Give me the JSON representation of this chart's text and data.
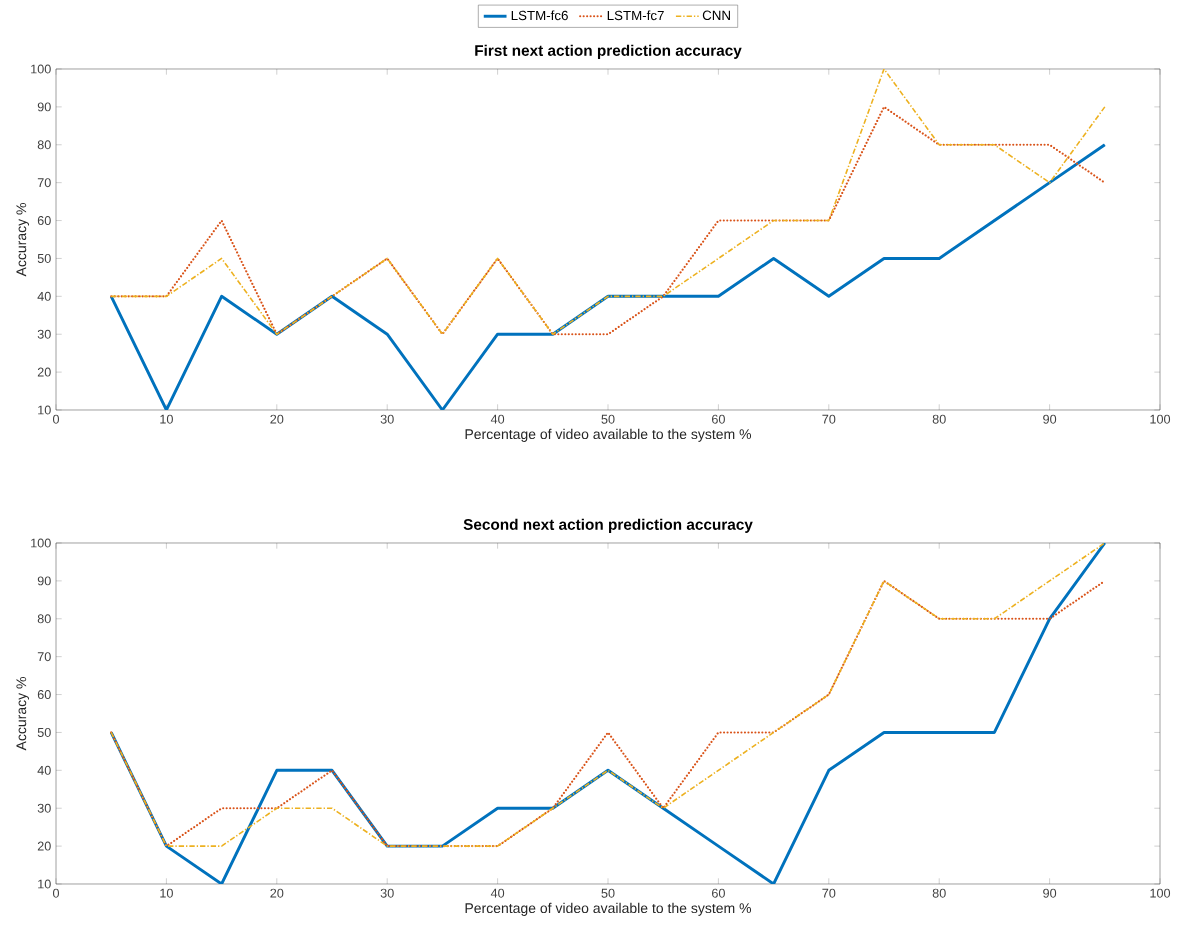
{
  "chart_data": [
    {
      "type": "line",
      "title": "First next action prediction accuracy",
      "xlabel": "Percentage of video available to the system %",
      "ylabel": "Accuracy %",
      "x": [
        5,
        10,
        15,
        20,
        25,
        30,
        35,
        40,
        45,
        50,
        55,
        60,
        65,
        70,
        75,
        80,
        85,
        90,
        95
      ],
      "series": [
        {
          "name": "LSTM-fc6",
          "color": "#0072bd",
          "line_style": "solid",
          "values": [
            40,
            10,
            40,
            30,
            40,
            30,
            10,
            30,
            30,
            40,
            40,
            40,
            50,
            40,
            50,
            50,
            60,
            70,
            80
          ]
        },
        {
          "name": "LSTM-fc7",
          "color": "#d95319",
          "line_style": "dotted",
          "values": [
            40,
            40,
            60,
            30,
            40,
            50,
            30,
            50,
            30,
            30,
            40,
            60,
            60,
            60,
            90,
            80,
            80,
            80,
            70
          ]
        },
        {
          "name": "CNN",
          "color": "#edb120",
          "line_style": "dashdot",
          "values": [
            40,
            40,
            50,
            30,
            40,
            50,
            30,
            50,
            30,
            40,
            40,
            50,
            60,
            60,
            100,
            80,
            80,
            70,
            90
          ]
        }
      ],
      "xlim": [
        0,
        100
      ],
      "xticks": [
        0,
        10,
        20,
        30,
        40,
        50,
        60,
        70,
        80,
        90,
        100
      ],
      "ylim": [
        10,
        100
      ],
      "yticks": [
        10,
        20,
        30,
        40,
        50,
        60,
        70,
        80,
        90,
        100
      ],
      "grid": false,
      "legend": "top"
    },
    {
      "type": "line",
      "title": "Second next action prediction accuracy",
      "xlabel": "Percentage of video available to the system %",
      "ylabel": "Accuracy %",
      "x": [
        5,
        10,
        15,
        20,
        25,
        30,
        35,
        40,
        45,
        50,
        55,
        60,
        65,
        70,
        75,
        80,
        85,
        90,
        95
      ],
      "series": [
        {
          "color": "#0072bd",
          "line_style": "solid",
          "values": [
            50,
            20,
            10,
            40,
            40,
            20,
            20,
            30,
            30,
            40,
            30,
            20,
            10,
            40,
            50,
            50,
            50,
            80,
            100
          ]
        },
        {
          "color": "#d95319",
          "line_style": "dotted",
          "values": [
            50,
            20,
            30,
            30,
            40,
            20,
            20,
            20,
            30,
            50,
            30,
            50,
            50,
            60,
            90,
            80,
            80,
            80,
            90
          ]
        },
        {
          "color": "#edb120",
          "line_style": "dashdot",
          "values": [
            50,
            20,
            20,
            30,
            30,
            20,
            20,
            20,
            30,
            40,
            30,
            40,
            50,
            60,
            90,
            80,
            80,
            90,
            100
          ]
        }
      ],
      "xlim": [
        0,
        100
      ],
      "xticks": [
        0,
        10,
        20,
        30,
        40,
        50,
        60,
        70,
        80,
        90,
        100
      ],
      "ylim": [
        10,
        100
      ],
      "yticks": [
        10,
        20,
        30,
        40,
        50,
        60,
        70,
        80,
        90,
        100
      ],
      "grid": false,
      "legend": false
    }
  ]
}
